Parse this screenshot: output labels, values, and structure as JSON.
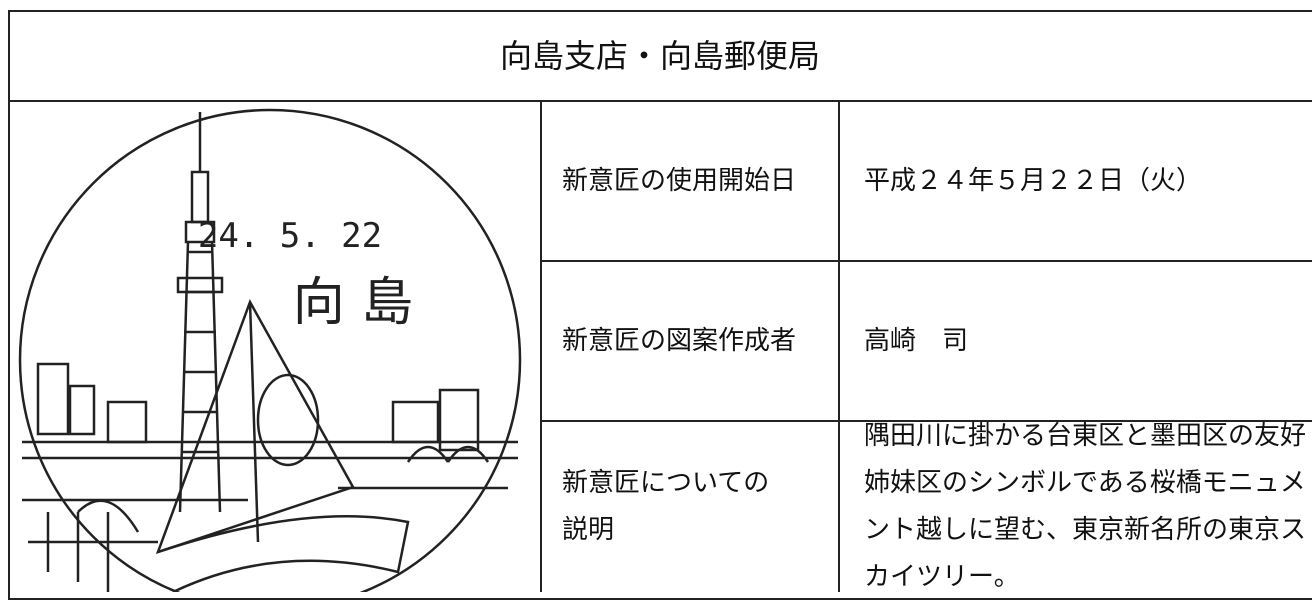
{
  "header": {
    "title": "向島支店・向島郵便局"
  },
  "stamp": {
    "date": "24. 5. 22",
    "name": "向 島"
  },
  "table": {
    "rows": [
      {
        "label": [
          "新意匠の使用開始日"
        ],
        "value": "平成２４年５月２２日（火）"
      },
      {
        "label": [
          "新意匠の図案作成者"
        ],
        "value": "高崎　司"
      },
      {
        "label": [
          "新意匠についての",
          "説明"
        ],
        "value": "隅田川に掛かる台東区と墨田区の友好姉妹区のシンボルである桜橋モニュメント越しに望む、東京新名所の東京スカイツリー。"
      }
    ]
  }
}
